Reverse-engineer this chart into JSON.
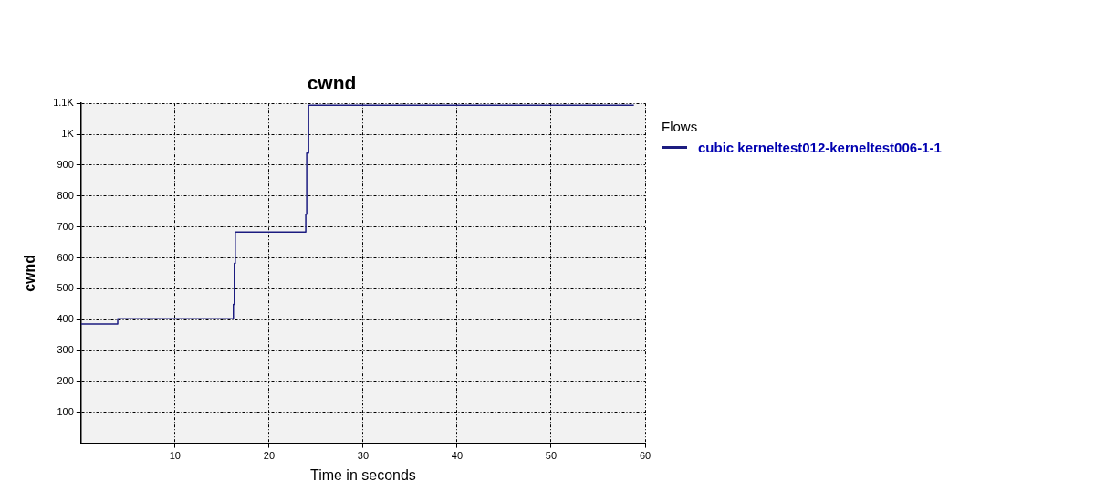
{
  "chart_data": {
    "type": "step",
    "title": "cwnd",
    "xlabel": "Time in seconds",
    "ylabel": "cwnd",
    "legend_title": "Flows",
    "x": [
      0,
      3.9,
      16.2,
      16.3,
      16.4,
      23.9,
      24.0,
      24.2,
      58.8
    ],
    "series": [
      {
        "name": "cubic kerneltest012-kerneltest006-1-1",
        "color": "#1c1c80",
        "values": [
          386,
          403,
          449,
          582,
          683,
          741,
          939,
          1094,
          1094
        ]
      }
    ],
    "xlim": [
      0,
      60
    ],
    "xticks": [
      10,
      20,
      30,
      40,
      50,
      60
    ],
    "ylim": [
      0,
      1100
    ],
    "yticks": [
      100,
      200,
      300,
      400,
      500,
      600,
      700,
      800,
      900,
      {
        "value": 1000,
        "label": "1K"
      },
      {
        "value": 1100,
        "label": "1.1K"
      }
    ],
    "grid": true,
    "legend": "top right",
    "marker": "none",
    "line_style": "solid"
  }
}
